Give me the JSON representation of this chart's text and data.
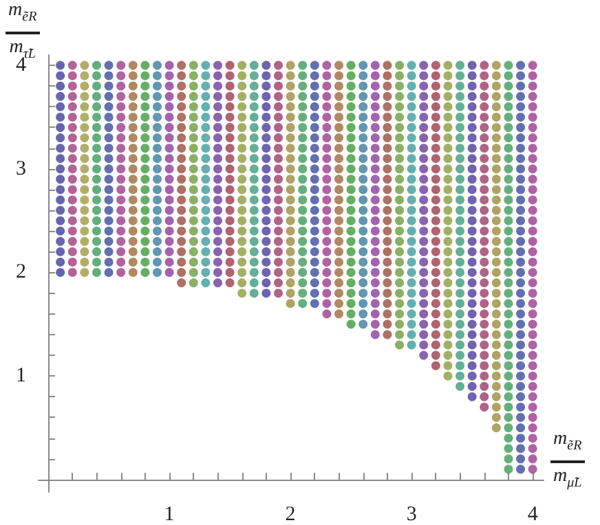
{
  "chart_data": {
    "type": "scatter",
    "xlabel": "m$_{ẽR}$\nm$_{μ̃L}$",
    "ylabel": "m$_{ẽR}$\nm$_{τ̃L}$",
    "xlim": [
      -0.08,
      4.09
    ],
    "ylim": [
      -0.12,
      4.1
    ],
    "xticks": [
      {
        "value": 0.2,
        "label": null
      },
      {
        "value": 0.4,
        "label": null
      },
      {
        "value": 0.6,
        "label": null
      },
      {
        "value": 0.8,
        "label": null
      },
      1,
      {
        "value": 1.2,
        "label": null
      },
      {
        "value": 1.4,
        "label": null
      },
      {
        "value": 1.6,
        "label": null
      },
      {
        "value": 1.8,
        "label": null
      },
      2,
      {
        "value": 2.2,
        "label": null
      },
      {
        "value": 2.4,
        "label": null
      },
      {
        "value": 2.6,
        "label": null
      },
      {
        "value": 2.8,
        "label": null
      },
      3,
      {
        "value": 3.2,
        "label": null
      },
      {
        "value": 3.4,
        "label": null
      },
      {
        "value": 3.6,
        "label": null
      },
      {
        "value": 3.8,
        "label": null
      },
      4
    ],
    "yticks": [
      {
        "value": 0.2,
        "label": null
      },
      {
        "value": 0.4,
        "label": null
      },
      {
        "value": 0.6,
        "label": null
      },
      {
        "value": 0.8,
        "label": null
      },
      1,
      {
        "value": 1.2,
        "label": null
      },
      {
        "value": 1.4,
        "label": null
      },
      {
        "value": 1.6,
        "label": null
      },
      {
        "value": 1.8,
        "label": null
      },
      2,
      {
        "value": 2.2,
        "label": null
      },
      {
        "value": 2.4,
        "label": null
      },
      {
        "value": 2.6,
        "label": null
      },
      {
        "value": 2.8,
        "label": null
      },
      3,
      {
        "value": 3.2,
        "label": null
      },
      {
        "value": 3.4,
        "label": null
      },
      {
        "value": 3.6,
        "label": null
      },
      {
        "value": 3.8,
        "label": null
      },
      4
    ],
    "grid": false,
    "marker": "circle",
    "series": [
      {
        "color": "#40409a",
        "x": [
          0.1,
          0.1,
          0.1,
          0.1,
          0.1,
          0.1,
          0.1,
          0.1,
          0.1,
          0.1,
          0.1,
          0.1,
          0.1,
          0.1,
          0.1,
          0.1,
          0.1,
          0.1,
          0.1,
          0.1,
          0.1
        ],
        "values": [
          2,
          2.1,
          2.2,
          2.3,
          2.4,
          2.5,
          2.6,
          2.7,
          2.8,
          2.9,
          3,
          3.1,
          3.2,
          3.3,
          3.4,
          3.5,
          3.6,
          3.7,
          3.8,
          3.9,
          4
        ]
      },
      {
        "color": "#a03c7c",
        "x": [
          0.2,
          0.2,
          0.2,
          0.2,
          0.2,
          0.2,
          0.2,
          0.2,
          0.2,
          0.2,
          0.2,
          0.2,
          0.2,
          0.2,
          0.2,
          0.2,
          0.2,
          0.2,
          0.2,
          0.2,
          0.2
        ],
        "values": [
          2,
          2.1,
          2.2,
          2.3,
          2.4,
          2.5,
          2.6,
          2.7,
          2.8,
          2.9,
          3,
          3.1,
          3.2,
          3.3,
          3.4,
          3.5,
          3.6,
          3.7,
          3.8,
          3.9,
          4
        ]
      },
      {
        "color": "#a09a40",
        "x": [
          0.3,
          0.3,
          0.3,
          0.3,
          0.3,
          0.3,
          0.3,
          0.3,
          0.3,
          0.3,
          0.3,
          0.3,
          0.3,
          0.3,
          0.3,
          0.3,
          0.3,
          0.3,
          0.3,
          0.3,
          0.3
        ],
        "values": [
          2,
          2.1,
          2.2,
          2.3,
          2.4,
          2.5,
          2.6,
          2.7,
          2.8,
          2.9,
          3,
          3.1,
          3.2,
          3.3,
          3.4,
          3.5,
          3.6,
          3.7,
          3.8,
          3.9,
          4
        ]
      },
      {
        "color": "#3c9a5c",
        "x": [
          0.4,
          0.4,
          0.4,
          0.4,
          0.4,
          0.4,
          0.4,
          0.4,
          0.4,
          0.4,
          0.4,
          0.4,
          0.4,
          0.4,
          0.4,
          0.4,
          0.4,
          0.4,
          0.4,
          0.4,
          0.4
        ],
        "values": [
          2,
          2.1,
          2.2,
          2.3,
          2.4,
          2.5,
          2.6,
          2.7,
          2.8,
          2.9,
          3,
          3.1,
          3.2,
          3.3,
          3.4,
          3.5,
          3.6,
          3.7,
          3.8,
          3.9,
          4
        ]
      },
      {
        "color": "#3c4c9c",
        "x": [
          0.5,
          0.5,
          0.5,
          0.5,
          0.5,
          0.5,
          0.5,
          0.5,
          0.5,
          0.5,
          0.5,
          0.5,
          0.5,
          0.5,
          0.5,
          0.5,
          0.5,
          0.5,
          0.5,
          0.5,
          0.5
        ],
        "values": [
          2,
          2.1,
          2.2,
          2.3,
          2.4,
          2.5,
          2.6,
          2.7,
          2.8,
          2.9,
          3,
          3.1,
          3.2,
          3.3,
          3.4,
          3.5,
          3.6,
          3.7,
          3.8,
          3.9,
          4
        ]
      },
      {
        "color": "#9c3c8c",
        "x": [
          0.6,
          0.6,
          0.6,
          0.6,
          0.6,
          0.6,
          0.6,
          0.6,
          0.6,
          0.6,
          0.6,
          0.6,
          0.6,
          0.6,
          0.6,
          0.6,
          0.6,
          0.6,
          0.6,
          0.6,
          0.6
        ],
        "values": [
          2,
          2.1,
          2.2,
          2.3,
          2.4,
          2.5,
          2.6,
          2.7,
          2.8,
          2.9,
          3,
          3.1,
          3.2,
          3.3,
          3.4,
          3.5,
          3.6,
          3.7,
          3.8,
          3.9,
          4
        ]
      },
      {
        "color": "#9c6c3c",
        "x": [
          0.7,
          0.7,
          0.7,
          0.7,
          0.7,
          0.7,
          0.7,
          0.7,
          0.7,
          0.7,
          0.7,
          0.7,
          0.7,
          0.7,
          0.7,
          0.7,
          0.7,
          0.7,
          0.7,
          0.7,
          0.7
        ],
        "values": [
          2,
          2.1,
          2.2,
          2.3,
          2.4,
          2.5,
          2.6,
          2.7,
          2.8,
          2.9,
          3,
          3.1,
          3.2,
          3.3,
          3.4,
          3.5,
          3.6,
          3.7,
          3.8,
          3.9,
          4
        ]
      },
      {
        "color": "#3c9c3c",
        "x": [
          0.8,
          0.8,
          0.8,
          0.8,
          0.8,
          0.8,
          0.8,
          0.8,
          0.8,
          0.8,
          0.8,
          0.8,
          0.8,
          0.8,
          0.8,
          0.8,
          0.8,
          0.8,
          0.8,
          0.8,
          0.8
        ],
        "values": [
          2,
          2.1,
          2.2,
          2.3,
          2.4,
          2.5,
          2.6,
          2.7,
          2.8,
          2.9,
          3,
          3.1,
          3.2,
          3.3,
          3.4,
          3.5,
          3.6,
          3.7,
          3.8,
          3.9,
          4
        ]
      },
      {
        "color": "#3c7c9c",
        "x": [
          0.9,
          0.9,
          0.9,
          0.9,
          0.9,
          0.9,
          0.9,
          0.9,
          0.9,
          0.9,
          0.9,
          0.9,
          0.9,
          0.9,
          0.9,
          0.9,
          0.9,
          0.9,
          0.9,
          0.9,
          0.9
        ],
        "values": [
          2,
          2.1,
          2.2,
          2.3,
          2.4,
          2.5,
          2.6,
          2.7,
          2.8,
          2.9,
          3,
          3.1,
          3.2,
          3.3,
          3.4,
          3.5,
          3.6,
          3.7,
          3.8,
          3.9,
          4
        ]
      },
      {
        "color": "#8c3c9c",
        "x": [
          1,
          1,
          1,
          1,
          1,
          1,
          1,
          1,
          1,
          1,
          1,
          1,
          1,
          1,
          1,
          1,
          1,
          1,
          1,
          1,
          1
        ],
        "values": [
          2,
          2.1,
          2.2,
          2.3,
          2.4,
          2.5,
          2.6,
          2.7,
          2.8,
          2.9,
          3,
          3.1,
          3.2,
          3.3,
          3.4,
          3.5,
          3.6,
          3.7,
          3.8,
          3.9,
          4
        ]
      },
      {
        "color": "#9c4c3c",
        "x": [
          1.1,
          1.1,
          1.1,
          1.1,
          1.1,
          1.1,
          1.1,
          1.1,
          1.1,
          1.1,
          1.1,
          1.1,
          1.1,
          1.1,
          1.1,
          1.1,
          1.1,
          1.1,
          1.1,
          1.1,
          1.1,
          1.1
        ],
        "values": [
          1.9,
          2,
          2.1,
          2.2,
          2.3,
          2.4,
          2.5,
          2.6,
          2.7,
          2.8,
          2.9,
          3,
          3.1,
          3.2,
          3.3,
          3.4,
          3.5,
          3.6,
          3.7,
          3.8,
          3.9,
          4
        ]
      },
      {
        "color": "#6c9c3c",
        "x": [
          1.2,
          1.2,
          1.2,
          1.2,
          1.2,
          1.2,
          1.2,
          1.2,
          1.2,
          1.2,
          1.2,
          1.2,
          1.2,
          1.2,
          1.2,
          1.2,
          1.2,
          1.2,
          1.2,
          1.2,
          1.2,
          1.2
        ],
        "values": [
          1.9,
          2,
          2.1,
          2.2,
          2.3,
          2.4,
          2.5,
          2.6,
          2.7,
          2.8,
          2.9,
          3,
          3.1,
          3.2,
          3.3,
          3.4,
          3.5,
          3.6,
          3.7,
          3.8,
          3.9,
          4
        ]
      },
      {
        "color": "#3c9c9c",
        "x": [
          1.3,
          1.3,
          1.3,
          1.3,
          1.3,
          1.3,
          1.3,
          1.3,
          1.3,
          1.3,
          1.3,
          1.3,
          1.3,
          1.3,
          1.3,
          1.3,
          1.3,
          1.3,
          1.3,
          1.3,
          1.3,
          1.3
        ],
        "values": [
          1.9,
          2,
          2.1,
          2.2,
          2.3,
          2.4,
          2.5,
          2.6,
          2.7,
          2.8,
          2.9,
          3,
          3.1,
          3.2,
          3.3,
          3.4,
          3.5,
          3.6,
          3.7,
          3.8,
          3.9,
          4
        ]
      },
      {
        "color": "#6c3c9c",
        "x": [
          1.4,
          1.4,
          1.4,
          1.4,
          1.4,
          1.4,
          1.4,
          1.4,
          1.4,
          1.4,
          1.4,
          1.4,
          1.4,
          1.4,
          1.4,
          1.4,
          1.4,
          1.4,
          1.4,
          1.4,
          1.4,
          1.4
        ],
        "values": [
          1.9,
          2,
          2.1,
          2.2,
          2.3,
          2.4,
          2.5,
          2.6,
          2.7,
          2.8,
          2.9,
          3,
          3.1,
          3.2,
          3.3,
          3.4,
          3.5,
          3.6,
          3.7,
          3.8,
          3.9,
          4
        ]
      },
      {
        "color": "#9c3c4c",
        "x": [
          1.5,
          1.5,
          1.5,
          1.5,
          1.5,
          1.5,
          1.5,
          1.5,
          1.5,
          1.5,
          1.5,
          1.5,
          1.5,
          1.5,
          1.5,
          1.5,
          1.5,
          1.5,
          1.5,
          1.5,
          1.5,
          1.5
        ],
        "values": [
          1.9,
          2,
          2.1,
          2.2,
          2.3,
          2.4,
          2.5,
          2.6,
          2.7,
          2.8,
          2.9,
          3,
          3.1,
          3.2,
          3.3,
          3.4,
          3.5,
          3.6,
          3.7,
          3.8,
          3.9,
          4
        ]
      },
      {
        "color": "#8c9c3c",
        "x": [
          1.6,
          1.6,
          1.6,
          1.6,
          1.6,
          1.6,
          1.6,
          1.6,
          1.6,
          1.6,
          1.6,
          1.6,
          1.6,
          1.6,
          1.6,
          1.6,
          1.6,
          1.6,
          1.6,
          1.6,
          1.6,
          1.6,
          1.6
        ],
        "values": [
          1.8,
          1.9,
          2,
          2.1,
          2.2,
          2.3,
          2.4,
          2.5,
          2.6,
          2.7,
          2.8,
          2.9,
          3,
          3.1,
          3.2,
          3.3,
          3.4,
          3.5,
          3.6,
          3.7,
          3.8,
          3.9,
          4
        ]
      },
      {
        "color": "#3c9c7c",
        "x": [
          1.7,
          1.7,
          1.7,
          1.7,
          1.7,
          1.7,
          1.7,
          1.7,
          1.7,
          1.7,
          1.7,
          1.7,
          1.7,
          1.7,
          1.7,
          1.7,
          1.7,
          1.7,
          1.7,
          1.7,
          1.7,
          1.7,
          1.7
        ],
        "values": [
          1.8,
          1.9,
          2,
          2.1,
          2.2,
          2.3,
          2.4,
          2.5,
          2.6,
          2.7,
          2.8,
          2.9,
          3,
          3.1,
          3.2,
          3.3,
          3.4,
          3.5,
          3.6,
          3.7,
          3.8,
          3.9,
          4
        ]
      },
      {
        "color": "#4c3c9c",
        "x": [
          1.8,
          1.8,
          1.8,
          1.8,
          1.8,
          1.8,
          1.8,
          1.8,
          1.8,
          1.8,
          1.8,
          1.8,
          1.8,
          1.8,
          1.8,
          1.8,
          1.8,
          1.8,
          1.8,
          1.8,
          1.8,
          1.8,
          1.8
        ],
        "values": [
          1.8,
          1.9,
          2,
          2.1,
          2.2,
          2.3,
          2.4,
          2.5,
          2.6,
          2.7,
          2.8,
          2.9,
          3,
          3.1,
          3.2,
          3.3,
          3.4,
          3.5,
          3.6,
          3.7,
          3.8,
          3.9,
          4
        ]
      },
      {
        "color": "#9c3c6c",
        "x": [
          1.9,
          1.9,
          1.9,
          1.9,
          1.9,
          1.9,
          1.9,
          1.9,
          1.9,
          1.9,
          1.9,
          1.9,
          1.9,
          1.9,
          1.9,
          1.9,
          1.9,
          1.9,
          1.9,
          1.9,
          1.9,
          1.9,
          1.9
        ],
        "values": [
          1.8,
          1.9,
          2,
          2.1,
          2.2,
          2.3,
          2.4,
          2.5,
          2.6,
          2.7,
          2.8,
          2.9,
          3,
          3.1,
          3.2,
          3.3,
          3.4,
          3.5,
          3.6,
          3.7,
          3.8,
          3.9,
          4
        ]
      },
      {
        "color": "#9c8c3c",
        "x": [
          2,
          2,
          2,
          2,
          2,
          2,
          2,
          2,
          2,
          2,
          2,
          2,
          2,
          2,
          2,
          2,
          2,
          2,
          2,
          2,
          2,
          2,
          2,
          2
        ],
        "values": [
          1.7,
          1.8,
          1.9,
          2,
          2.1,
          2.2,
          2.3,
          2.4,
          2.5,
          2.6,
          2.7,
          2.8,
          2.9,
          3,
          3.1,
          3.2,
          3.3,
          3.4,
          3.5,
          3.6,
          3.7,
          3.8,
          3.9,
          4
        ]
      },
      {
        "color": "#3c9c5c",
        "x": [
          2.1,
          2.1,
          2.1,
          2.1,
          2.1,
          2.1,
          2.1,
          2.1,
          2.1,
          2.1,
          2.1,
          2.1,
          2.1,
          2.1,
          2.1,
          2.1,
          2.1,
          2.1,
          2.1,
          2.1,
          2.1,
          2.1,
          2.1,
          2.1
        ],
        "values": [
          1.7,
          1.8,
          1.9,
          2,
          2.1,
          2.2,
          2.3,
          2.4,
          2.5,
          2.6,
          2.7,
          2.8,
          2.9,
          3,
          3.1,
          3.2,
          3.3,
          3.4,
          3.5,
          3.6,
          3.7,
          3.8,
          3.9,
          4
        ]
      },
      {
        "color": "#3c4c9c",
        "x": [
          2.2,
          2.2,
          2.2,
          2.2,
          2.2,
          2.2,
          2.2,
          2.2,
          2.2,
          2.2,
          2.2,
          2.2,
          2.2,
          2.2,
          2.2,
          2.2,
          2.2,
          2.2,
          2.2,
          2.2,
          2.2,
          2.2,
          2.2,
          2.2
        ],
        "values": [
          1.7,
          1.8,
          1.9,
          2,
          2.1,
          2.2,
          2.3,
          2.4,
          2.5,
          2.6,
          2.7,
          2.8,
          2.9,
          3,
          3.1,
          3.2,
          3.3,
          3.4,
          3.5,
          3.6,
          3.7,
          3.8,
          3.9,
          4
        ]
      },
      {
        "color": "#9c3c8c",
        "x": [
          2.3,
          2.3,
          2.3,
          2.3,
          2.3,
          2.3,
          2.3,
          2.3,
          2.3,
          2.3,
          2.3,
          2.3,
          2.3,
          2.3,
          2.3,
          2.3,
          2.3,
          2.3,
          2.3,
          2.3,
          2.3,
          2.3,
          2.3,
          2.3,
          2.3
        ],
        "values": [
          1.6,
          1.7,
          1.8,
          1.9,
          2,
          2.1,
          2.2,
          2.3,
          2.4,
          2.5,
          2.6,
          2.7,
          2.8,
          2.9,
          3,
          3.1,
          3.2,
          3.3,
          3.4,
          3.5,
          3.6,
          3.7,
          3.8,
          3.9,
          4
        ]
      },
      {
        "color": "#9c6c3c",
        "x": [
          2.4,
          2.4,
          2.4,
          2.4,
          2.4,
          2.4,
          2.4,
          2.4,
          2.4,
          2.4,
          2.4,
          2.4,
          2.4,
          2.4,
          2.4,
          2.4,
          2.4,
          2.4,
          2.4,
          2.4,
          2.4,
          2.4,
          2.4,
          2.4,
          2.4
        ],
        "values": [
          1.6,
          1.7,
          1.8,
          1.9,
          2,
          2.1,
          2.2,
          2.3,
          2.4,
          2.5,
          2.6,
          2.7,
          2.8,
          2.9,
          3,
          3.1,
          3.2,
          3.3,
          3.4,
          3.5,
          3.6,
          3.7,
          3.8,
          3.9,
          4
        ]
      },
      {
        "color": "#3c9c3c",
        "x": [
          2.5,
          2.5,
          2.5,
          2.5,
          2.5,
          2.5,
          2.5,
          2.5,
          2.5,
          2.5,
          2.5,
          2.5,
          2.5,
          2.5,
          2.5,
          2.5,
          2.5,
          2.5,
          2.5,
          2.5,
          2.5,
          2.5,
          2.5,
          2.5,
          2.5,
          2.5
        ],
        "values": [
          1.5,
          1.6,
          1.7,
          1.8,
          1.9,
          2,
          2.1,
          2.2,
          2.3,
          2.4,
          2.5,
          2.6,
          2.7,
          2.8,
          2.9,
          3,
          3.1,
          3.2,
          3.3,
          3.4,
          3.5,
          3.6,
          3.7,
          3.8,
          3.9,
          4
        ]
      },
      {
        "color": "#3c7c9c",
        "x": [
          2.6,
          2.6,
          2.6,
          2.6,
          2.6,
          2.6,
          2.6,
          2.6,
          2.6,
          2.6,
          2.6,
          2.6,
          2.6,
          2.6,
          2.6,
          2.6,
          2.6,
          2.6,
          2.6,
          2.6,
          2.6,
          2.6,
          2.6,
          2.6,
          2.6,
          2.6
        ],
        "values": [
          1.5,
          1.6,
          1.7,
          1.8,
          1.9,
          2,
          2.1,
          2.2,
          2.3,
          2.4,
          2.5,
          2.6,
          2.7,
          2.8,
          2.9,
          3,
          3.1,
          3.2,
          3.3,
          3.4,
          3.5,
          3.6,
          3.7,
          3.8,
          3.9,
          4
        ]
      },
      {
        "color": "#8c3c9c",
        "x": [
          2.7,
          2.7,
          2.7,
          2.7,
          2.7,
          2.7,
          2.7,
          2.7,
          2.7,
          2.7,
          2.7,
          2.7,
          2.7,
          2.7,
          2.7,
          2.7,
          2.7,
          2.7,
          2.7,
          2.7,
          2.7,
          2.7,
          2.7,
          2.7,
          2.7,
          2.7,
          2.7
        ],
        "values": [
          1.4,
          1.5,
          1.6,
          1.7,
          1.8,
          1.9,
          2,
          2.1,
          2.2,
          2.3,
          2.4,
          2.5,
          2.6,
          2.7,
          2.8,
          2.9,
          3,
          3.1,
          3.2,
          3.3,
          3.4,
          3.5,
          3.6,
          3.7,
          3.8,
          3.9,
          4
        ]
      },
      {
        "color": "#9c4c3c",
        "x": [
          2.8,
          2.8,
          2.8,
          2.8,
          2.8,
          2.8,
          2.8,
          2.8,
          2.8,
          2.8,
          2.8,
          2.8,
          2.8,
          2.8,
          2.8,
          2.8,
          2.8,
          2.8,
          2.8,
          2.8,
          2.8,
          2.8,
          2.8,
          2.8,
          2.8,
          2.8,
          2.8
        ],
        "values": [
          1.4,
          1.5,
          1.6,
          1.7,
          1.8,
          1.9,
          2,
          2.1,
          2.2,
          2.3,
          2.4,
          2.5,
          2.6,
          2.7,
          2.8,
          2.9,
          3,
          3.1,
          3.2,
          3.3,
          3.4,
          3.5,
          3.6,
          3.7,
          3.8,
          3.9,
          4
        ]
      },
      {
        "color": "#6c9c3c",
        "x": [
          2.9,
          2.9,
          2.9,
          2.9,
          2.9,
          2.9,
          2.9,
          2.9,
          2.9,
          2.9,
          2.9,
          2.9,
          2.9,
          2.9,
          2.9,
          2.9,
          2.9,
          2.9,
          2.9,
          2.9,
          2.9,
          2.9,
          2.9,
          2.9,
          2.9,
          2.9,
          2.9,
          2.9
        ],
        "values": [
          1.3,
          1.4,
          1.5,
          1.6,
          1.7,
          1.8,
          1.9,
          2,
          2.1,
          2.2,
          2.3,
          2.4,
          2.5,
          2.6,
          2.7,
          2.8,
          2.9,
          3,
          3.1,
          3.2,
          3.3,
          3.4,
          3.5,
          3.6,
          3.7,
          3.8,
          3.9,
          4
        ]
      },
      {
        "color": "#3c9c9c",
        "x": [
          3,
          3,
          3,
          3,
          3,
          3,
          3,
          3,
          3,
          3,
          3,
          3,
          3,
          3,
          3,
          3,
          3,
          3,
          3,
          3,
          3,
          3,
          3,
          3,
          3,
          3,
          3,
          3
        ],
        "values": [
          1.3,
          1.4,
          1.5,
          1.6,
          1.7,
          1.8,
          1.9,
          2,
          2.1,
          2.2,
          2.3,
          2.4,
          2.5,
          2.6,
          2.7,
          2.8,
          2.9,
          3,
          3.1,
          3.2,
          3.3,
          3.4,
          3.5,
          3.6,
          3.7,
          3.8,
          3.9,
          4
        ]
      },
      {
        "color": "#6c3c9c",
        "x": [
          3.1,
          3.1,
          3.1,
          3.1,
          3.1,
          3.1,
          3.1,
          3.1,
          3.1,
          3.1,
          3.1,
          3.1,
          3.1,
          3.1,
          3.1,
          3.1,
          3.1,
          3.1,
          3.1,
          3.1,
          3.1,
          3.1,
          3.1,
          3.1,
          3.1,
          3.1,
          3.1,
          3.1,
          3.1
        ],
        "values": [
          1.2,
          1.3,
          1.4,
          1.5,
          1.6,
          1.7,
          1.8,
          1.9,
          2,
          2.1,
          2.2,
          2.3,
          2.4,
          2.5,
          2.6,
          2.7,
          2.8,
          2.9,
          3,
          3.1,
          3.2,
          3.3,
          3.4,
          3.5,
          3.6,
          3.7,
          3.8,
          3.9,
          4
        ]
      },
      {
        "color": "#9c3c4c",
        "x": [
          3.2,
          3.2,
          3.2,
          3.2,
          3.2,
          3.2,
          3.2,
          3.2,
          3.2,
          3.2,
          3.2,
          3.2,
          3.2,
          3.2,
          3.2,
          3.2,
          3.2,
          3.2,
          3.2,
          3.2,
          3.2,
          3.2,
          3.2,
          3.2,
          3.2,
          3.2,
          3.2,
          3.2,
          3.2,
          3.2
        ],
        "values": [
          1.1,
          1.2,
          1.3,
          1.4,
          1.5,
          1.6,
          1.7,
          1.8,
          1.9,
          2,
          2.1,
          2.2,
          2.3,
          2.4,
          2.5,
          2.6,
          2.7,
          2.8,
          2.9,
          3,
          3.1,
          3.2,
          3.3,
          3.4,
          3.5,
          3.6,
          3.7,
          3.8,
          3.9,
          4
        ]
      },
      {
        "color": "#8c9c3c",
        "x": [
          3.3,
          3.3,
          3.3,
          3.3,
          3.3,
          3.3,
          3.3,
          3.3,
          3.3,
          3.3,
          3.3,
          3.3,
          3.3,
          3.3,
          3.3,
          3.3,
          3.3,
          3.3,
          3.3,
          3.3,
          3.3,
          3.3,
          3.3,
          3.3,
          3.3,
          3.3,
          3.3,
          3.3,
          3.3,
          3.3,
          3.3
        ],
        "values": [
          1,
          1.1,
          1.2,
          1.3,
          1.4,
          1.5,
          1.6,
          1.7,
          1.8,
          1.9,
          2,
          2.1,
          2.2,
          2.3,
          2.4,
          2.5,
          2.6,
          2.7,
          2.8,
          2.9,
          3,
          3.1,
          3.2,
          3.3,
          3.4,
          3.5,
          3.6,
          3.7,
          3.8,
          3.9,
          4
        ]
      },
      {
        "color": "#3c9c7c",
        "x": [
          3.4,
          3.4,
          3.4,
          3.4,
          3.4,
          3.4,
          3.4,
          3.4,
          3.4,
          3.4,
          3.4,
          3.4,
          3.4,
          3.4,
          3.4,
          3.4,
          3.4,
          3.4,
          3.4,
          3.4,
          3.4,
          3.4,
          3.4,
          3.4,
          3.4,
          3.4,
          3.4,
          3.4,
          3.4,
          3.4,
          3.4,
          3.4
        ],
        "values": [
          0.9,
          1,
          1.1,
          1.2,
          1.3,
          1.4,
          1.5,
          1.6,
          1.7,
          1.8,
          1.9,
          2,
          2.1,
          2.2,
          2.3,
          2.4,
          2.5,
          2.6,
          2.7,
          2.8,
          2.9,
          3,
          3.1,
          3.2,
          3.3,
          3.4,
          3.5,
          3.6,
          3.7,
          3.8,
          3.9,
          4
        ]
      },
      {
        "color": "#4c3c9c",
        "x": [
          3.5,
          3.5,
          3.5,
          3.5,
          3.5,
          3.5,
          3.5,
          3.5,
          3.5,
          3.5,
          3.5,
          3.5,
          3.5,
          3.5,
          3.5,
          3.5,
          3.5,
          3.5,
          3.5,
          3.5,
          3.5,
          3.5,
          3.5,
          3.5,
          3.5,
          3.5,
          3.5,
          3.5,
          3.5,
          3.5,
          3.5,
          3.5,
          3.5
        ],
        "values": [
          0.8,
          0.9,
          1,
          1.1,
          1.2,
          1.3,
          1.4,
          1.5,
          1.6,
          1.7,
          1.8,
          1.9,
          2,
          2.1,
          2.2,
          2.3,
          2.4,
          2.5,
          2.6,
          2.7,
          2.8,
          2.9,
          3,
          3.1,
          3.2,
          3.3,
          3.4,
          3.5,
          3.6,
          3.7,
          3.8,
          3.9,
          4
        ]
      },
      {
        "color": "#9c3c6c",
        "x": [
          3.6,
          3.6,
          3.6,
          3.6,
          3.6,
          3.6,
          3.6,
          3.6,
          3.6,
          3.6,
          3.6,
          3.6,
          3.6,
          3.6,
          3.6,
          3.6,
          3.6,
          3.6,
          3.6,
          3.6,
          3.6,
          3.6,
          3.6,
          3.6,
          3.6,
          3.6,
          3.6,
          3.6,
          3.6,
          3.6,
          3.6,
          3.6,
          3.6,
          3.6
        ],
        "values": [
          0.7,
          0.8,
          0.9,
          1,
          1.1,
          1.2,
          1.3,
          1.4,
          1.5,
          1.6,
          1.7,
          1.8,
          1.9,
          2,
          2.1,
          2.2,
          2.3,
          2.4,
          2.5,
          2.6,
          2.7,
          2.8,
          2.9,
          3,
          3.1,
          3.2,
          3.3,
          3.4,
          3.5,
          3.6,
          3.7,
          3.8,
          3.9,
          4
        ]
      },
      {
        "color": "#9c8c3c",
        "x": [
          3.7,
          3.7,
          3.7,
          3.7,
          3.7,
          3.7,
          3.7,
          3.7,
          3.7,
          3.7,
          3.7,
          3.7,
          3.7,
          3.7,
          3.7,
          3.7,
          3.7,
          3.7,
          3.7,
          3.7,
          3.7,
          3.7,
          3.7,
          3.7,
          3.7,
          3.7,
          3.7,
          3.7,
          3.7,
          3.7,
          3.7,
          3.7,
          3.7,
          3.7,
          3.7,
          3.7
        ],
        "values": [
          0.5,
          0.6,
          0.7,
          0.8,
          0.9,
          1,
          1.1,
          1.2,
          1.3,
          1.4,
          1.5,
          1.6,
          1.7,
          1.8,
          1.9,
          2,
          2.1,
          2.2,
          2.3,
          2.4,
          2.5,
          2.6,
          2.7,
          2.8,
          2.9,
          3,
          3.1,
          3.2,
          3.3,
          3.4,
          3.5,
          3.6,
          3.7,
          3.8,
          3.9,
          4
        ]
      },
      {
        "color": "#3c9c5c",
        "x": [
          3.8,
          3.8,
          3.8,
          3.8,
          3.8,
          3.8,
          3.8,
          3.8,
          3.8,
          3.8,
          3.8,
          3.8,
          3.8,
          3.8,
          3.8,
          3.8,
          3.8,
          3.8,
          3.8,
          3.8,
          3.8,
          3.8,
          3.8,
          3.8,
          3.8,
          3.8,
          3.8,
          3.8,
          3.8,
          3.8,
          3.8,
          3.8,
          3.8,
          3.8,
          3.8,
          3.8,
          3.8,
          3.8,
          3.8,
          3.8
        ],
        "values": [
          0.1,
          0.2,
          0.3,
          0.4,
          0.5,
          0.6,
          0.7,
          0.8,
          0.9,
          1,
          1.1,
          1.2,
          1.3,
          1.4,
          1.5,
          1.6,
          1.7,
          1.8,
          1.9,
          2,
          2.1,
          2.2,
          2.3,
          2.4,
          2.5,
          2.6,
          2.7,
          2.8,
          2.9,
          3,
          3.1,
          3.2,
          3.3,
          3.4,
          3.5,
          3.6,
          3.7,
          3.8,
          3.9,
          4
        ]
      },
      {
        "color": "#3c4c9c",
        "x": [
          3.9,
          3.9,
          3.9,
          3.9,
          3.9,
          3.9,
          3.9,
          3.9,
          3.9,
          3.9,
          3.9,
          3.9,
          3.9,
          3.9,
          3.9,
          3.9,
          3.9,
          3.9,
          3.9,
          3.9,
          3.9,
          3.9,
          3.9,
          3.9,
          3.9,
          3.9,
          3.9,
          3.9,
          3.9,
          3.9,
          3.9,
          3.9,
          3.9,
          3.9,
          3.9,
          3.9,
          3.9,
          3.9,
          3.9,
          3.9
        ],
        "values": [
          0.1,
          0.2,
          0.3,
          0.4,
          0.5,
          0.6,
          0.7,
          0.8,
          0.9,
          1,
          1.1,
          1.2,
          1.3,
          1.4,
          1.5,
          1.6,
          1.7,
          1.8,
          1.9,
          2,
          2.1,
          2.2,
          2.3,
          2.4,
          2.5,
          2.6,
          2.7,
          2.8,
          2.9,
          3,
          3.1,
          3.2,
          3.3,
          3.4,
          3.5,
          3.6,
          3.7,
          3.8,
          3.9,
          4
        ]
      },
      {
        "color": "#9c3c8c",
        "x": [
          4,
          4,
          4,
          4,
          4,
          4,
          4,
          4,
          4,
          4,
          4,
          4,
          4,
          4,
          4,
          4,
          4,
          4,
          4,
          4,
          4,
          4,
          4,
          4,
          4,
          4,
          4,
          4,
          4,
          4,
          4,
          4,
          4,
          4,
          4,
          4,
          4,
          4,
          4,
          4
        ],
        "values": [
          0.1,
          0.2,
          0.3,
          0.4,
          0.5,
          0.6,
          0.7,
          0.8,
          0.9,
          1,
          1.1,
          1.2,
          1.3,
          1.4,
          1.5,
          1.6,
          1.7,
          1.8,
          1.9,
          2,
          2.1,
          2.2,
          2.3,
          2.4,
          2.5,
          2.6,
          2.7,
          2.8,
          2.9,
          3,
          3.1,
          3.2,
          3.3,
          3.4,
          3.5,
          3.6,
          3.7,
          3.8,
          3.9,
          4
        ]
      }
    ]
  }
}
